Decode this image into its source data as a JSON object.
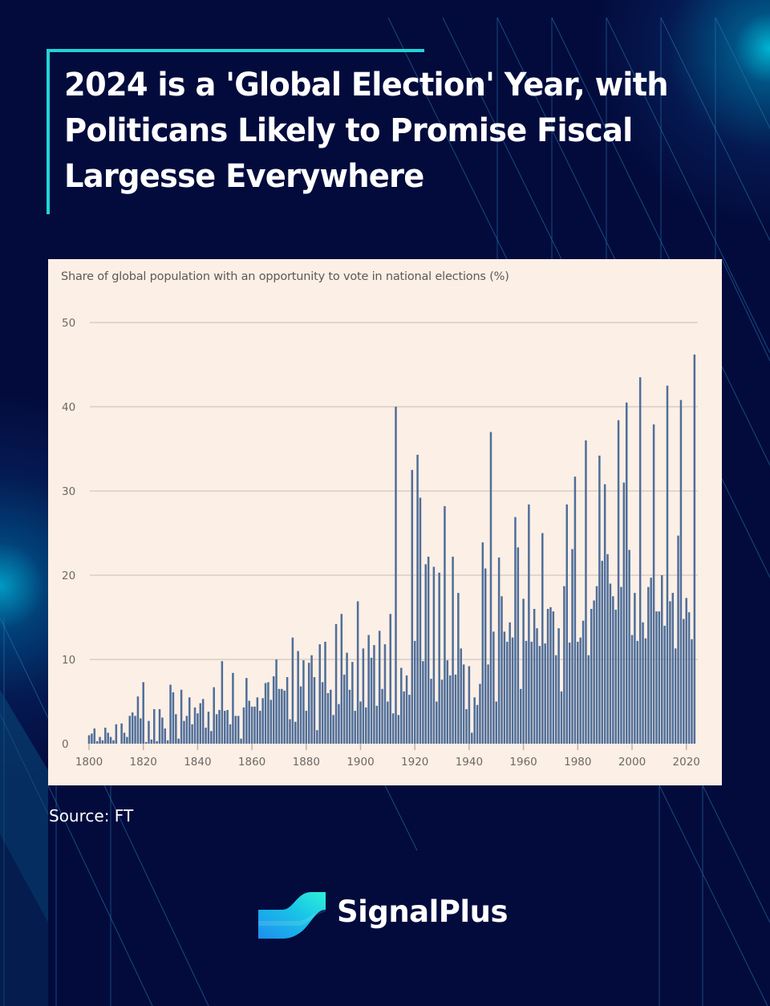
{
  "header": {
    "title": "2024 is a 'Global Election' Year, with Politicans Likely to Promise Fiscal Largesse Everywhere"
  },
  "footer": {
    "source": "Source: FT",
    "brand": "SignalPlus"
  },
  "colors": {
    "background": "#030b3d",
    "accent": "#23d3d6",
    "card": "#fcefe5",
    "bar": "#4f6e99",
    "grid": "#cfc6bf",
    "tick_text": "#6d6864"
  },
  "chart_data": {
    "type": "bar",
    "title": "Share of global population with an opportunity to vote in national elections (%)",
    "xlabel": "",
    "ylabel": "",
    "x_start": 1800,
    "x_end": 2024,
    "ylim": [
      0,
      50
    ],
    "yticks": [
      0,
      10,
      20,
      30,
      40,
      50
    ],
    "xticks": [
      1800,
      1820,
      1840,
      1860,
      1880,
      1900,
      1920,
      1940,
      1960,
      1980,
      2000,
      2020
    ],
    "grid": true,
    "legend": "none",
    "series": [
      {
        "name": "Share of global population voting (%)",
        "values": [
          1.0,
          1.2,
          1.8,
          0.3,
          0.8,
          0.4,
          1.9,
          1.3,
          0.8,
          0.4,
          2.3,
          0.0,
          2.4,
          1.3,
          0.8,
          3.3,
          3.7,
          3.3,
          5.6,
          3.0,
          7.3,
          0.2,
          2.7,
          0.5,
          4.1,
          0.3,
          4.1,
          3.1,
          1.8,
          0.4,
          7.0,
          6.1,
          3.5,
          0.6,
          6.4,
          2.7,
          3.3,
          5.5,
          2.3,
          4.3,
          3.6,
          4.8,
          5.3,
          1.9,
          3.8,
          1.5,
          6.7,
          3.5,
          4.0,
          9.8,
          3.9,
          4.0,
          2.3,
          8.4,
          3.3,
          3.3,
          0.6,
          4.3,
          7.8,
          5.1,
          4.4,
          4.4,
          5.5,
          3.9,
          5.4,
          7.2,
          7.3,
          5.2,
          8.0,
          10.0,
          6.5,
          6.5,
          6.3,
          7.9,
          2.9,
          12.6,
          2.6,
          11.0,
          6.8,
          9.9,
          3.9,
          9.6,
          10.5,
          7.9,
          1.6,
          11.8,
          7.3,
          12.1,
          6.0,
          6.4,
          3.4,
          14.2,
          4.7,
          15.4,
          8.2,
          10.8,
          6.4,
          9.7,
          3.9,
          16.9,
          5.0,
          11.3,
          4.3,
          12.9,
          10.2,
          11.7,
          4.5,
          13.4,
          6.5,
          11.8,
          5.0,
          15.4,
          3.6,
          40.0,
          3.4,
          9.0,
          6.2,
          8.1,
          5.8,
          32.5,
          12.2,
          34.3,
          29.2,
          9.8,
          21.3,
          22.2,
          7.7,
          21.0,
          5.0,
          20.3,
          7.6,
          28.2,
          9.9,
          8.1,
          22.2,
          8.2,
          17.9,
          11.3,
          9.4,
          4.1,
          9.2,
          1.3,
          5.5,
          4.6,
          7.1,
          23.9,
          20.8,
          9.4,
          37.0,
          13.3,
          5.0,
          22.1,
          17.5,
          13.3,
          12.1,
          14.4,
          12.6,
          26.9,
          23.3,
          6.5,
          17.2,
          12.2,
          28.4,
          12.1,
          16.0,
          13.7,
          11.6,
          25.0,
          11.9,
          16.0,
          16.2,
          15.7,
          10.5,
          13.7,
          6.2,
          18.7,
          28.4,
          12.0,
          23.1,
          31.7,
          12.1,
          12.6,
          14.6,
          36.0,
          10.5,
          16.0,
          17.0,
          18.7,
          34.2,
          21.7,
          30.8,
          22.5,
          19.0,
          17.5,
          15.9,
          38.4,
          18.6,
          31.0,
          40.5,
          23.0,
          12.9,
          17.9,
          12.2,
          43.5,
          14.4,
          12.5,
          18.6,
          19.7,
          37.9,
          15.7,
          15.7,
          20.0,
          14.0,
          42.5,
          16.9,
          17.9,
          11.3,
          24.7,
          40.8,
          14.8,
          17.3,
          15.6,
          12.4,
          46.2
        ]
      }
    ]
  }
}
